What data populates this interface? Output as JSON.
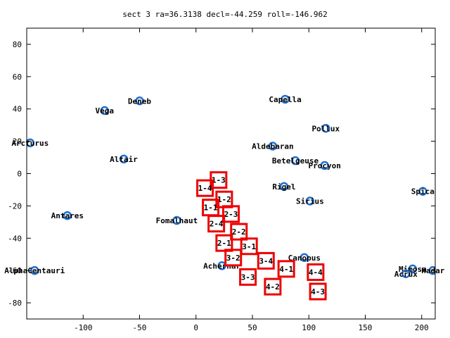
{
  "chart_data": {
    "type": "scatter",
    "title": "sect 3 ra=36.3138 decl=-44.259 roll=-146.962",
    "xlabel": "",
    "ylabel": "",
    "xlim": [
      -150,
      212
    ],
    "ylim": [
      -90,
      90
    ],
    "x_ticks": [
      -100,
      -50,
      0,
      50,
      100,
      150,
      200
    ],
    "y_ticks": [
      -80,
      -60,
      -40,
      -20,
      0,
      20,
      40,
      60,
      80
    ],
    "grid": false,
    "colors": {
      "stars": "#1f6fd0",
      "sectors": "#ee0000",
      "axes": "#000000"
    },
    "stars": [
      {
        "name": "Deneb",
        "x": -50,
        "y": 45
      },
      {
        "name": "Vega",
        "x": -81,
        "y": 39
      },
      {
        "name": "Arcturus",
        "x": -147,
        "y": 19
      },
      {
        "name": "Altair",
        "x": -64,
        "y": 9
      },
      {
        "name": "Antares",
        "x": -114,
        "y": -26
      },
      {
        "name": "Fomalhaut",
        "x": -17,
        "y": -29
      },
      {
        "name": "AlphaCentauri",
        "x": -143,
        "y": -60
      },
      {
        "name": "Achernar",
        "x": 23,
        "y": -57
      },
      {
        "name": "Capella",
        "x": 79,
        "y": 46
      },
      {
        "name": "Pollux",
        "x": 115,
        "y": 28
      },
      {
        "name": "Aldebaran",
        "x": 68,
        "y": 17
      },
      {
        "name": "Betelgeuse",
        "x": 88,
        "y": 8
      },
      {
        "name": "Procyon",
        "x": 114,
        "y": 5
      },
      {
        "name": "Rigel",
        "x": 78,
        "y": -8
      },
      {
        "name": "Sirius",
        "x": 101,
        "y": -17
      },
      {
        "name": "Canopus",
        "x": 96,
        "y": -52
      },
      {
        "name": "Spica",
        "x": 201,
        "y": -11
      },
      {
        "name": "Mimosa",
        "x": 192,
        "y": -59
      },
      {
        "name": "Acrux",
        "x": 186,
        "y": -62
      },
      {
        "name": "Hadar",
        "x": 210,
        "y": -60
      }
    ],
    "sectors": [
      {
        "label": "1-3",
        "x": 20,
        "y": -4
      },
      {
        "label": "1-4",
        "x": 8,
        "y": -9
      },
      {
        "label": "1-2",
        "x": 25,
        "y": -16
      },
      {
        "label": "1-1",
        "x": 13,
        "y": -21
      },
      {
        "label": "2-3",
        "x": 31,
        "y": -25
      },
      {
        "name": "2-4",
        "label": "2-4",
        "x": 18,
        "y": -31
      },
      {
        "label": "2-2",
        "x": 38,
        "y": -36
      },
      {
        "label": "2-1",
        "x": 25,
        "y": -43
      },
      {
        "label": "3-1",
        "x": 47,
        "y": -45
      },
      {
        "label": "3-2",
        "x": 33,
        "y": -52
      },
      {
        "label": "3-4",
        "x": 62,
        "y": -54
      },
      {
        "label": "3-3",
        "x": 46,
        "y": -64
      },
      {
        "label": "4-1",
        "x": 80,
        "y": -59
      },
      {
        "label": "4-4",
        "x": 106,
        "y": -61
      },
      {
        "label": "4-2",
        "x": 68,
        "y": -70
      },
      {
        "label": "4-3",
        "x": 108,
        "y": -73
      }
    ]
  }
}
